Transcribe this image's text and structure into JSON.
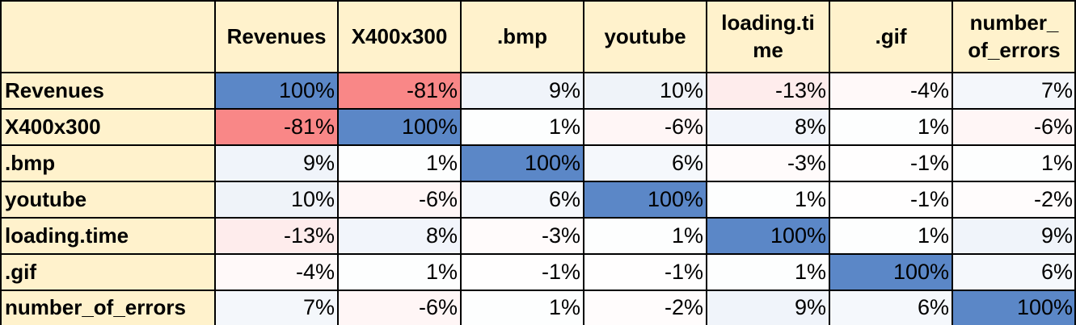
{
  "chart_data": {
    "type": "heatmap",
    "columns": [
      "Revenues",
      "X400x300",
      ".bmp",
      "youtube",
      "loading.time",
      ".gif",
      "number_of_errors"
    ],
    "column_headers_display": [
      "Revenues",
      "X400x300",
      ".bmp",
      "youtube",
      "loading.ti me",
      ".gif",
      "number_ of_errors"
    ],
    "rows": [
      "Revenues",
      "X400x300",
      ".bmp",
      "youtube",
      "loading.time",
      ".gif",
      "number_of_errors"
    ],
    "values": [
      [
        100,
        -81,
        9,
        10,
        -13,
        -4,
        7
      ],
      [
        -81,
        100,
        1,
        -6,
        8,
        1,
        -6
      ],
      [
        9,
        1,
        100,
        6,
        -3,
        -1,
        1
      ],
      [
        10,
        -6,
        6,
        100,
        1,
        -1,
        -2
      ],
      [
        -13,
        8,
        -3,
        1,
        100,
        1,
        9
      ],
      [
        -4,
        1,
        -1,
        -1,
        1,
        100,
        6
      ],
      [
        7,
        -6,
        1,
        -2,
        9,
        6,
        100
      ]
    ],
    "unit": "%",
    "colors": {
      "positive": "#5b87c7",
      "negative": "#f86b6b",
      "zero": "#ffffff",
      "header_bg": "#fff2cc"
    }
  }
}
